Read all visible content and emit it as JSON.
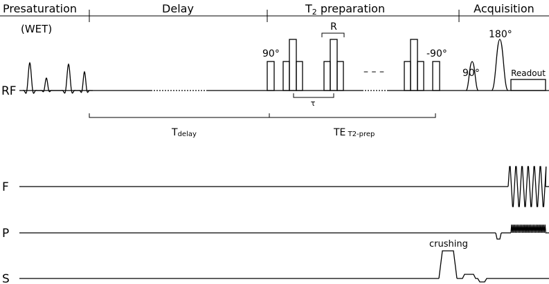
{
  "sections": {
    "presaturation": "Presaturation",
    "wet": "(WET)",
    "delay": "Delay",
    "t2_prep_prefix": "T",
    "t2_prep_sub": "2",
    "t2_prep_suffix": " preparation",
    "acquisition": "Acquisition"
  },
  "rf_labels": {
    "flip_90": "90°",
    "refocus_r": "R",
    "flip_neg90": "-90°",
    "acq_90": "90°",
    "acq_180": "180°",
    "readout": "Readout",
    "tau": "τ",
    "ellipsis": "– – –"
  },
  "timing": {
    "tdelay_main": "T",
    "tdelay_sub": "delay",
    "te_main": "TE",
    "te_sub": " T2-prep"
  },
  "channels": {
    "rf": "RF",
    "f": "F",
    "p": "P",
    "s": "S"
  },
  "gradient_labels": {
    "crushing": "crushing"
  }
}
